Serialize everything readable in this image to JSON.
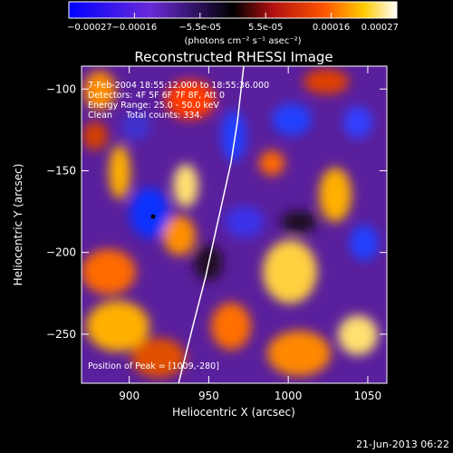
{
  "chart_data": {
    "type": "heatmap",
    "title": "Reconstructed RHESSI Image",
    "xlabel": "Heliocentric X (arcsec)",
    "ylabel": "Heliocentric Y (arcsec)",
    "xlim": [
      870,
      1062
    ],
    "ylim": [
      -280,
      -86
    ],
    "x_ticks": [
      900,
      950,
      1000,
      1050
    ],
    "y_ticks": [
      -100,
      -150,
      -200,
      -250
    ],
    "colorbar": {
      "label": "(photons cm⁻² s⁻¹ asec⁻²)",
      "ticks": [
        "-0.00027",
        "-0.00016",
        "-5.5e-05",
        "5.5e-05",
        "0.00016",
        "0.00027"
      ],
      "range": [
        -0.00027,
        0.00027
      ]
    },
    "annotations": [
      "7-Feb-2004 18:55:12.000 to 18:55:36.000",
      "Detectors: 4F 5F 6F 7F 8F, Att 0",
      "Energy Range: 25.0 - 50.0 keV",
      "Clean     Total counts: 334."
    ],
    "peak_label": "Position of Peak = [1009,-280]",
    "footer_date": "21-Jun-2013 06:22",
    "limb_points": [
      [
        931,
        -280
      ],
      [
        940,
        -245
      ],
      [
        948,
        -215
      ],
      [
        956,
        -180
      ],
      [
        964,
        -145
      ],
      [
        968,
        -120
      ],
      [
        972,
        -86
      ]
    ],
    "min_marker": [
      915,
      -178
    ]
  }
}
